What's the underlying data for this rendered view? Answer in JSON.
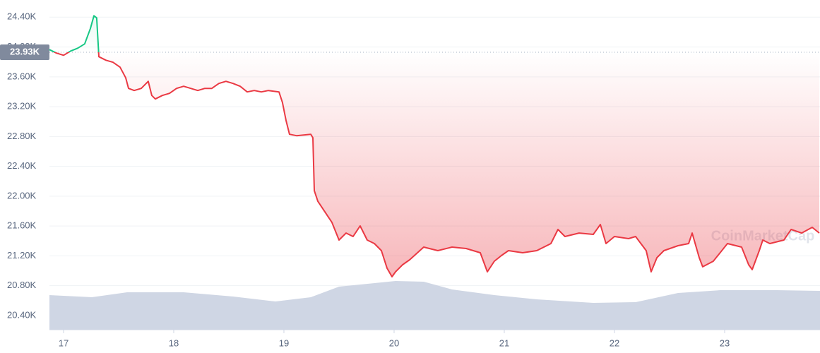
{
  "chart_data": {
    "type": "line",
    "watermark": "CoinMarketCap",
    "baseline": 23930,
    "baseline_label": "23.93K",
    "up_color": "#16c784",
    "down_color": "#ea3943",
    "grid": true,
    "xlim": [
      16.872,
      23.859
    ],
    "xticks": [
      17,
      18,
      19,
      20,
      21,
      22,
      23
    ],
    "ylim": [
      20210,
      24630
    ],
    "yticks": [
      {
        "value": 20400,
        "label": "20.40K"
      },
      {
        "value": 20800,
        "label": "20.80K"
      },
      {
        "value": 21200,
        "label": "21.20K"
      },
      {
        "value": 21600,
        "label": "21.60K"
      },
      {
        "value": 22000,
        "label": "22.00K"
      },
      {
        "value": 22400,
        "label": "22.40K"
      },
      {
        "value": 22800,
        "label": "22.80K"
      },
      {
        "value": 23200,
        "label": "23.20K"
      },
      {
        "value": 23600,
        "label": "23.60K"
      },
      {
        "value": 24000,
        "label": "24.00K"
      },
      {
        "value": 24400,
        "label": "24.40K"
      }
    ],
    "x": [
      16.872,
      16.936,
      17.0,
      17.064,
      17.128,
      17.192,
      17.244,
      17.276,
      17.301,
      17.321,
      17.385,
      17.449,
      17.513,
      17.564,
      17.59,
      17.641,
      17.705,
      17.769,
      17.801,
      17.833,
      17.897,
      17.962,
      18.026,
      18.09,
      18.154,
      18.218,
      18.282,
      18.346,
      18.41,
      18.474,
      18.538,
      18.603,
      18.667,
      18.731,
      18.795,
      18.859,
      18.955,
      18.987,
      19.019,
      19.051,
      19.115,
      19.244,
      19.263,
      19.276,
      19.308,
      19.372,
      19.436,
      19.5,
      19.564,
      19.628,
      19.692,
      19.756,
      19.821,
      19.885,
      19.936,
      19.981,
      20.013,
      20.077,
      20.141,
      20.269,
      20.397,
      20.526,
      20.654,
      20.782,
      20.846,
      20.91,
      20.974,
      21.038,
      21.167,
      21.295,
      21.423,
      21.487,
      21.551,
      21.679,
      21.808,
      21.872,
      21.923,
      22.0,
      22.128,
      22.192,
      22.288,
      22.333,
      22.385,
      22.449,
      22.577,
      22.673,
      22.705,
      22.769,
      22.801,
      22.897,
      23.026,
      23.154,
      23.218,
      23.25,
      23.314,
      23.346,
      23.41,
      23.538,
      23.603,
      23.699,
      23.795,
      23.859
    ],
    "values": [
      23965,
      23918,
      23889,
      23946,
      23984,
      24041,
      24249,
      24419,
      24391,
      23870,
      23823,
      23795,
      23729,
      23587,
      23445,
      23417,
      23445,
      23540,
      23350,
      23303,
      23350,
      23379,
      23445,
      23473,
      23445,
      23417,
      23445,
      23445,
      23511,
      23540,
      23511,
      23473,
      23398,
      23417,
      23398,
      23417,
      23398,
      23256,
      23019,
      22830,
      22811,
      22830,
      22783,
      22074,
      21932,
      21790,
      21648,
      21412,
      21506,
      21459,
      21601,
      21412,
      21365,
      21270,
      21034,
      20920,
      20986,
      21081,
      21147,
      21317,
      21270,
      21317,
      21298,
      21242,
      20986,
      21128,
      21204,
      21270,
      21242,
      21270,
      21365,
      21554,
      21459,
      21506,
      21488,
      21620,
      21365,
      21459,
      21431,
      21459,
      21270,
      20986,
      21175,
      21270,
      21336,
      21365,
      21506,
      21175,
      21053,
      21128,
      21365,
      21317,
      21081,
      21015,
      21270,
      21412,
      21365,
      21412,
      21554,
      21506,
      21582,
      21506
    ]
  }
}
